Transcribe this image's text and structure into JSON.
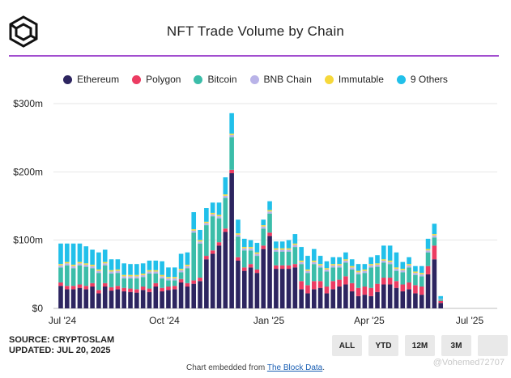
{
  "title": "NFT Trade Volume by Chain",
  "source_line": "SOURCE: CRYPTOSLAM",
  "updated_line": "UPDATED: JUL 20, 2025",
  "embed_text": "Chart embedded from",
  "embed_link": "The Block Data",
  "embed_period": ".",
  "watermark": "@Vohemed72707",
  "range_buttons": [
    "ALL",
    "YTD",
    "12M",
    "3M"
  ],
  "colors": {
    "Ethereum": "#2d2560",
    "Polygon": "#ec3c62",
    "Bitcoin": "#3bbda9",
    "BNB Chain": "#b9b3e8",
    "Immutable": "#f6d83b",
    "9 Others": "#21c0ea",
    "accent_divider": "#a24ecf"
  },
  "chart_data": {
    "type": "bar",
    "stacked": true,
    "title": "NFT Trade Volume by Chain",
    "xlabel": "",
    "ylabel": "",
    "ylim": [
      0,
      300
    ],
    "y_unit": "$m",
    "y_ticks": [
      "$0",
      "$100m",
      "$200m",
      "$300m"
    ],
    "x_ticks": [
      "Jul '24",
      "Oct '24",
      "Jan '25",
      "Apr '25",
      "Jul '25"
    ],
    "legend_position": "top",
    "grid": true,
    "series": [
      {
        "name": "Ethereum",
        "values": [
          33,
          28,
          28,
          30,
          28,
          32,
          22,
          32,
          26,
          28,
          25,
          24,
          23,
          27,
          24,
          32,
          25,
          27,
          28,
          38,
          32,
          36,
          40,
          72,
          80,
          92,
          112,
          198,
          70,
          55,
          60,
          52,
          87,
          106,
          58,
          58,
          58,
          60,
          28,
          22,
          28,
          30,
          22,
          28,
          32,
          35,
          25,
          18,
          20,
          18,
          24,
          35,
          35,
          30,
          25,
          28,
          22,
          20,
          50,
          72,
          8
        ]
      },
      {
        "name": "Polygon",
        "values": [
          5,
          5,
          5,
          5,
          5,
          5,
          5,
          5,
          5,
          5,
          5,
          5,
          5,
          5,
          5,
          5,
          5,
          5,
          5,
          5,
          5,
          5,
          5,
          5,
          5,
          5,
          5,
          5,
          5,
          5,
          5,
          5,
          5,
          5,
          5,
          5,
          5,
          5,
          12,
          12,
          12,
          10,
          10,
          12,
          10,
          12,
          12,
          12,
          12,
          12,
          12,
          10,
          10,
          10,
          10,
          10,
          12,
          12,
          12,
          20,
          3
        ]
      },
      {
        "name": "Bitcoin",
        "values": [
          22,
          30,
          26,
          28,
          28,
          22,
          25,
          26,
          20,
          19,
          14,
          15,
          16,
          14,
          22,
          14,
          14,
          9,
          8,
          10,
          22,
          70,
          50,
          45,
          50,
          35,
          45,
          48,
          30,
          25,
          20,
          20,
          25,
          28,
          20,
          20,
          20,
          25,
          25,
          18,
          25,
          20,
          22,
          20,
          18,
          20,
          20,
          20,
          20,
          30,
          25,
          22,
          20,
          15,
          18,
          22,
          15,
          15,
          20,
          12,
          2
        ]
      },
      {
        "name": "BNB Chain",
        "values": [
          3,
          3,
          3,
          3,
          3,
          3,
          3,
          3,
          3,
          3,
          3,
          3,
          3,
          3,
          3,
          3,
          3,
          3,
          3,
          3,
          3,
          3,
          3,
          3,
          3,
          3,
          3,
          3,
          3,
          3,
          3,
          3,
          3,
          3,
          3,
          3,
          3,
          3,
          3,
          3,
          3,
          3,
          3,
          3,
          3,
          3,
          3,
          3,
          3,
          3,
          3,
          3,
          3,
          3,
          3,
          3,
          3,
          3,
          3,
          3,
          1
        ]
      },
      {
        "name": "Immutable",
        "values": [
          2,
          2,
          2,
          2,
          2,
          2,
          2,
          2,
          2,
          2,
          2,
          2,
          2,
          2,
          2,
          2,
          2,
          2,
          2,
          2,
          2,
          2,
          2,
          2,
          2,
          2,
          2,
          2,
          2,
          2,
          2,
          2,
          2,
          2,
          2,
          2,
          2,
          2,
          2,
          2,
          2,
          2,
          2,
          2,
          2,
          2,
          2,
          2,
          2,
          2,
          2,
          2,
          2,
          2,
          2,
          2,
          2,
          2,
          2,
          2,
          0
        ]
      },
      {
        "name": "9 Others",
        "values": [
          30,
          27,
          31,
          27,
          25,
          22,
          25,
          18,
          16,
          15,
          17,
          16,
          16,
          15,
          14,
          14,
          20,
          14,
          14,
          22,
          18,
          25,
          15,
          20,
          15,
          18,
          25,
          30,
          20,
          12,
          10,
          14,
          8,
          13,
          10,
          10,
          12,
          14,
          20,
          20,
          17,
          12,
          10,
          10,
          10,
          10,
          10,
          10,
          8,
          10,
          12,
          20,
          22,
          22,
          10,
          10,
          8,
          10,
          15,
          15,
          4
        ]
      }
    ]
  }
}
